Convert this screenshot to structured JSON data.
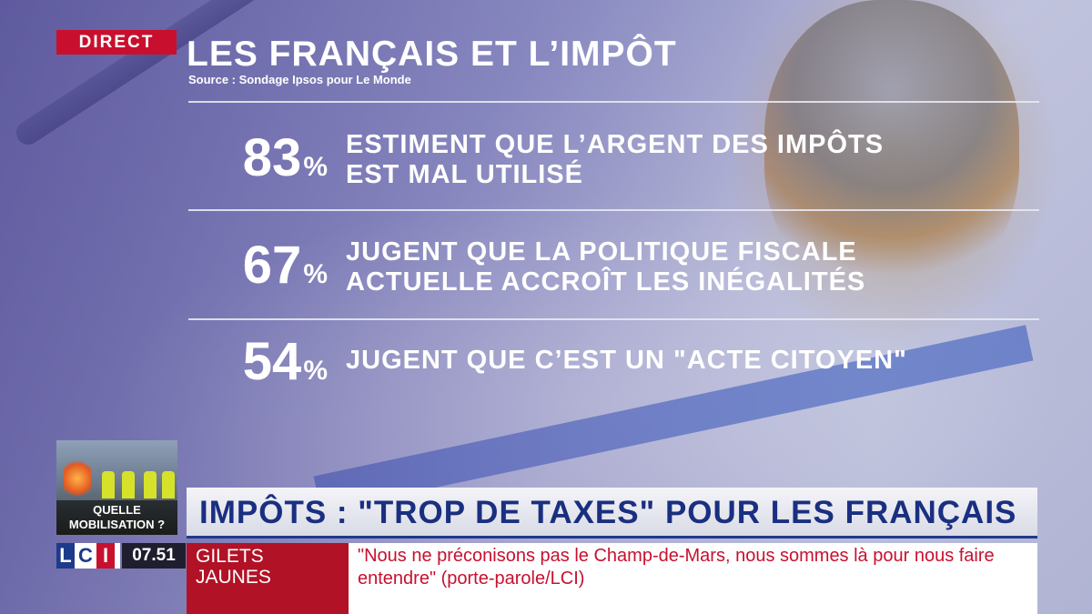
{
  "live_badge": "DIRECT",
  "title": "LES FRANÇAIS ET L’IMPÔT",
  "source": "Source : Sondage Ipsos pour Le Monde",
  "stats": [
    {
      "value": "83",
      "unit": "%",
      "text": "ESTIMENT QUE L’ARGENT DES IMPÔTS\nEST MAL UTILISÉ"
    },
    {
      "value": "67",
      "unit": "%",
      "text": "JUGENT QUE LA POLITIQUE FISCALE\nACTUELLE ACCROÎT LES INÉGALITÉS"
    },
    {
      "value": "54",
      "unit": "%",
      "text": "JUGENT QUE C’EST UN \"ACTE CITOYEN\""
    }
  ],
  "thumbnail": {
    "label_line1": "QUELLE",
    "label_line2": "MOBILISATION ?"
  },
  "headline": "IMPÔTS : \"TROP DE TAXES\" POUR LES FRANÇAIS",
  "channel": {
    "l": "L",
    "c": "C",
    "i": "I"
  },
  "clock": "07.51",
  "ticker": {
    "topic": "GILETS\nJAUNES",
    "text": "\"Nous ne préconisons pas le Champ-de-Mars, nous sommes là pour nous faire entendre\" (porte-parole/LCI)"
  },
  "colors": {
    "accent_red": "#c8102e",
    "accent_blue": "#1e3a8a"
  }
}
